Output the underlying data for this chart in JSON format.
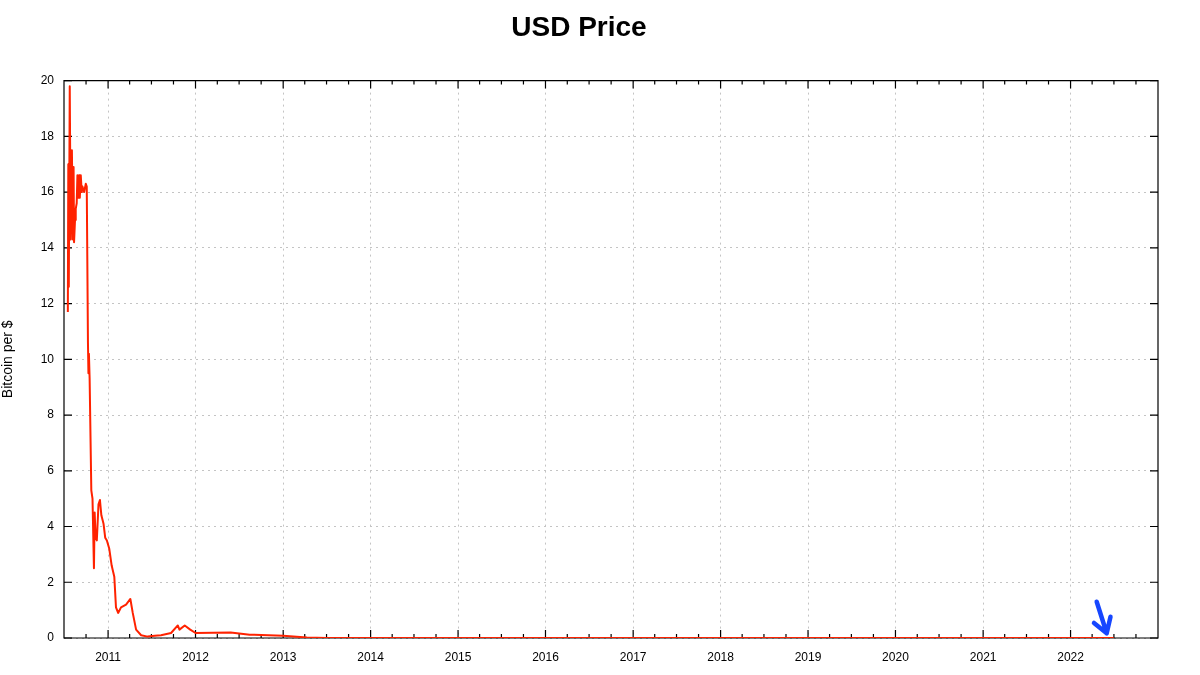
{
  "chart_data": {
    "type": "line",
    "title": "USD Price",
    "ylabel": "Bitcoin per $",
    "x": [
      "2010-07-17",
      "2010-07-19",
      "2010-07-21",
      "2010-07-25",
      "2010-07-29",
      "2010-08-03",
      "2010-08-07",
      "2010-08-10",
      "2010-08-12",
      "2010-08-16",
      "2010-08-19",
      "2010-08-23",
      "2010-08-26",
      "2010-08-30",
      "2010-09-02",
      "2010-09-05",
      "2010-09-09",
      "2010-09-13",
      "2010-09-16",
      "2010-09-23",
      "2010-09-30",
      "2010-10-04",
      "2010-10-09",
      "2010-10-11",
      "2010-10-13",
      "2010-10-16",
      "2010-10-23",
      "2010-10-28",
      "2010-11-03",
      "2010-11-06",
      "2010-11-10",
      "2010-11-15",
      "2010-11-22",
      "2010-11-28",
      "2010-12-04",
      "2010-12-13",
      "2010-12-20",
      "2010-12-27",
      "2011-01-06",
      "2011-01-16",
      "2011-01-27",
      "2011-02-03",
      "2011-02-12",
      "2011-02-24",
      "2011-03-17",
      "2011-04-04",
      "2011-04-14",
      "2011-04-28",
      "2011-05-19",
      "2011-06-15",
      "2011-07-15",
      "2011-08-10",
      "2011-09-21",
      "2011-10-19",
      "2011-10-26",
      "2011-11-17",
      "2011-12-10",
      "2012-01-01",
      "2012-05-27",
      "2012-08-14",
      "2013-01-01",
      "2013-04-10",
      "2013-07-01",
      "2014-01-01",
      "2016-01-01",
      "2018-01-01",
      "2020-01-01",
      "2022-06-30"
    ],
    "values": [
      11.7,
      17.0,
      12.6,
      19.8,
      14.3,
      17.5,
      14.3,
      16.9,
      14.2,
      15.0,
      15.4,
      15.6,
      16.6,
      15.8,
      16.6,
      15.8,
      16.6,
      16.0,
      16.2,
      16.0,
      16.3,
      16.2,
      10.6,
      9.5,
      10.2,
      9.3,
      5.3,
      5.0,
      2.5,
      4.5,
      3.6,
      3.5,
      4.8,
      4.95,
      4.4,
      4.1,
      3.6,
      3.5,
      3.2,
      2.6,
      2.2,
      1.1,
      0.9,
      1.1,
      1.2,
      1.4,
      0.9,
      0.3,
      0.1,
      0.05,
      0.08,
      0.1,
      0.18,
      0.45,
      0.3,
      0.45,
      0.3,
      0.18,
      0.2,
      0.12,
      0.08,
      0.02,
      0,
      0,
      0,
      0,
      0,
      0
    ],
    "color": "#ff2200",
    "marker": "none",
    "grid": true,
    "legend": false,
    "xlim": [
      "2010-07-01",
      "2023-01-01"
    ],
    "xticks": [
      {
        "value": "2010-10",
        "label": null
      },
      "2011",
      {
        "value": "2011-04",
        "label": null
      },
      {
        "value": "2011-07",
        "label": null
      },
      {
        "value": "2011-10",
        "label": null
      },
      "2012",
      {
        "value": "2012-04",
        "label": null
      },
      {
        "value": "2012-07",
        "label": null
      },
      {
        "value": "2012-10",
        "label": null
      },
      "2013",
      {
        "value": "2013-04",
        "label": null
      },
      {
        "value": "2013-07",
        "label": null
      },
      {
        "value": "2013-10",
        "label": null
      },
      "2014",
      {
        "value": "2014-04",
        "label": null
      },
      {
        "value": "2014-07",
        "label": null
      },
      {
        "value": "2014-10",
        "label": null
      },
      "2015",
      {
        "value": "2015-04",
        "label": null
      },
      {
        "value": "2015-07",
        "label": null
      },
      {
        "value": "2015-10",
        "label": null
      },
      "2016",
      {
        "value": "2016-04",
        "label": null
      },
      {
        "value": "2016-07",
        "label": null
      },
      {
        "value": "2016-10",
        "label": null
      },
      "2017",
      {
        "value": "2017-04",
        "label": null
      },
      {
        "value": "2017-07",
        "label": null
      },
      {
        "value": "2017-10",
        "label": null
      },
      "2018",
      {
        "value": "2018-04",
        "label": null
      },
      {
        "value": "2018-07",
        "label": null
      },
      {
        "value": "2018-10",
        "label": null
      },
      "2019",
      {
        "value": "2019-04",
        "label": null
      },
      {
        "value": "2019-07",
        "label": null
      },
      {
        "value": "2019-10",
        "label": null
      },
      "2020",
      {
        "value": "2020-04",
        "label": null
      },
      {
        "value": "2020-07",
        "label": null
      },
      {
        "value": "2020-10",
        "label": null
      },
      "2021",
      {
        "value": "2021-04",
        "label": null
      },
      {
        "value": "2021-07",
        "label": null
      },
      {
        "value": "2021-10",
        "label": null
      },
      "2022",
      {
        "value": "2022-04",
        "label": null
      },
      {
        "value": "2022-07",
        "label": null
      },
      {
        "value": "2022-10",
        "label": null
      }
    ],
    "ylim": [
      0,
      20
    ],
    "yticks": [
      0,
      2,
      4,
      6,
      8,
      10,
      12,
      14,
      16,
      18,
      20
    ]
  }
}
